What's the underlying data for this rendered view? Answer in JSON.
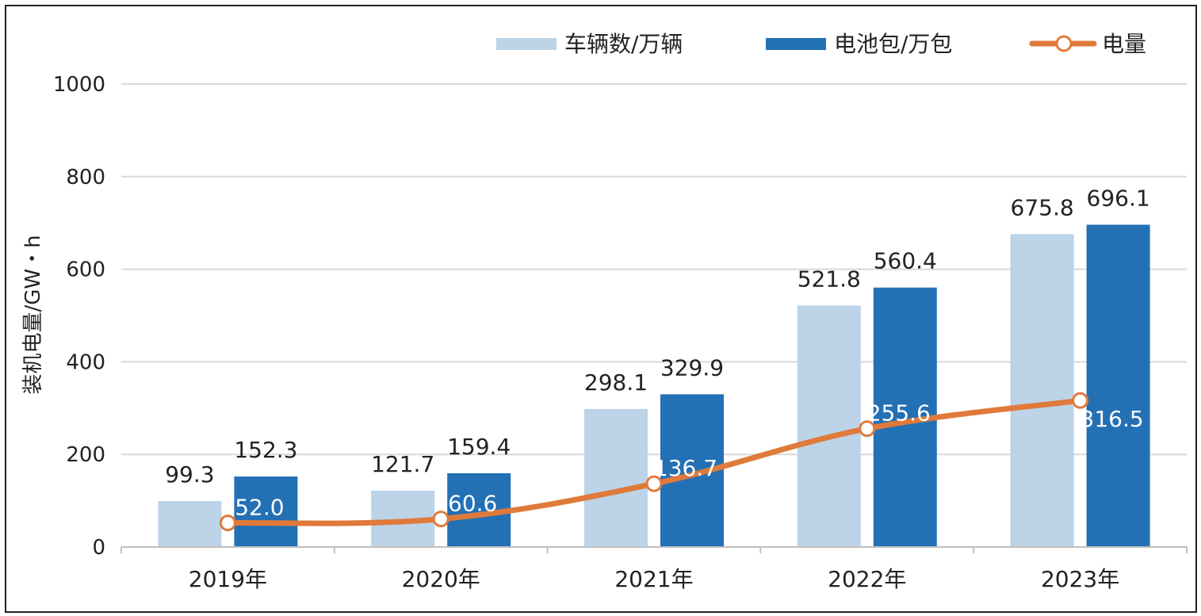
{
  "chart_data": {
    "type": "bar",
    "title": "",
    "xlabel": "",
    "ylabel": "装机电量/GW・h",
    "ylim": [
      0,
      1000
    ],
    "yticks": [
      0,
      200,
      400,
      600,
      800,
      1000
    ],
    "grid": true,
    "legend_position": "top-right",
    "categories": [
      "2019年",
      "2020年",
      "2021年",
      "2022年",
      "2023年"
    ],
    "series": [
      {
        "name": "车辆数/万辆",
        "kind": "bar",
        "color": "#bcd3e8",
        "values": [
          99.3,
          121.7,
          298.1,
          521.8,
          675.8
        ]
      },
      {
        "name": "电池包/万包",
        "kind": "bar",
        "color": "#2470b5",
        "values": [
          152.3,
          159.4,
          329.9,
          560.4,
          696.1
        ]
      },
      {
        "name": "电量",
        "kind": "line",
        "color": "#e07a3a",
        "values": [
          52.0,
          60.6,
          136.7,
          255.6,
          316.5
        ]
      }
    ]
  }
}
